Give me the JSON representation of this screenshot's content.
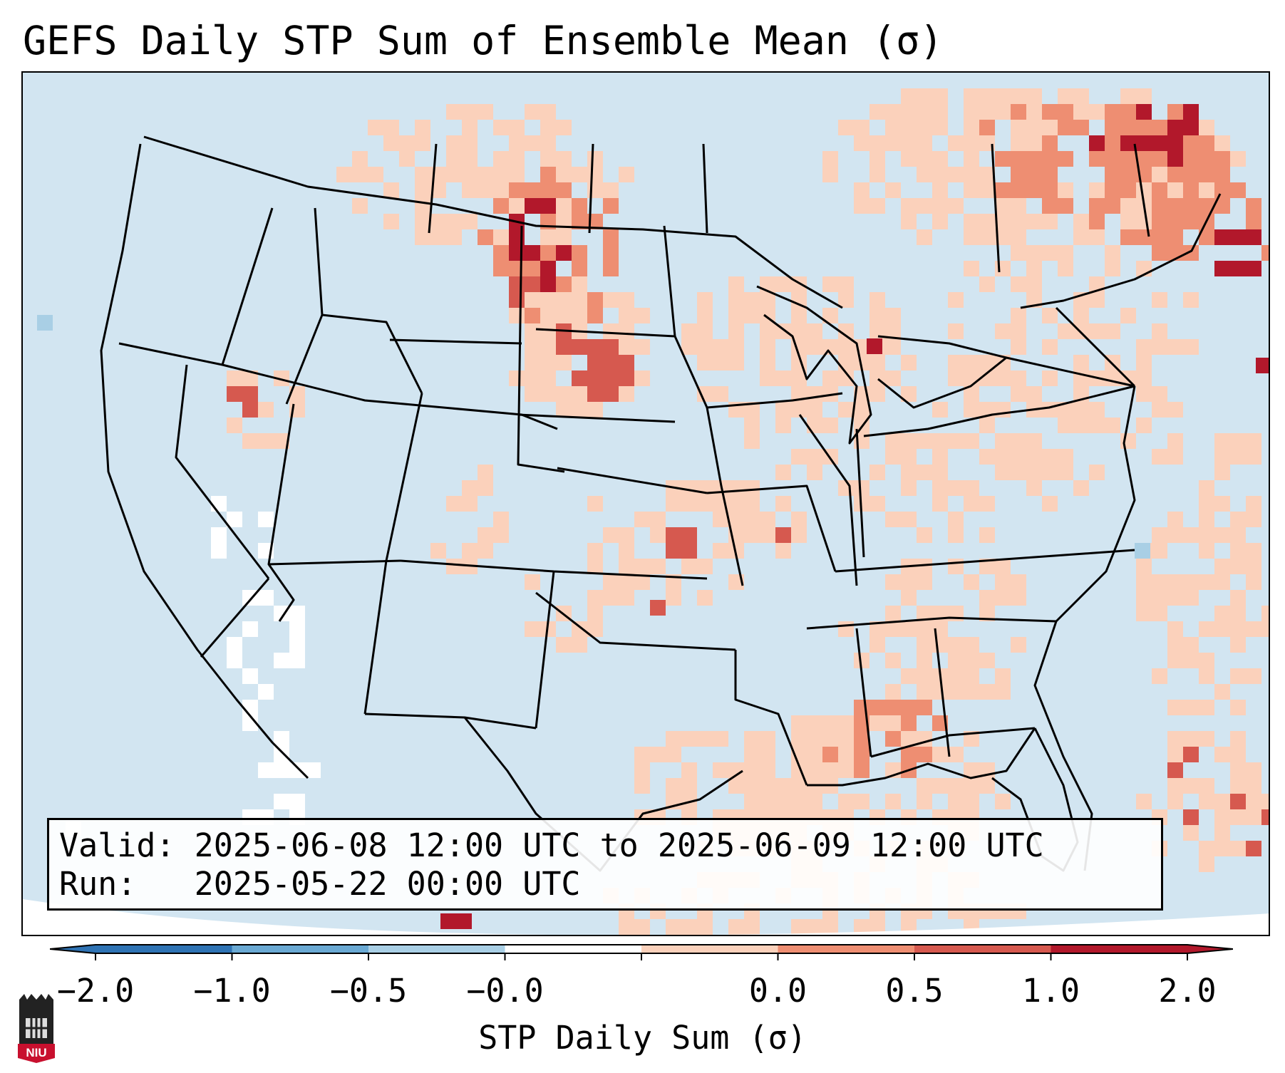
{
  "title": "GEFS Daily STP Sum of Ensemble Mean (σ)",
  "info": {
    "valid_label": "Valid:",
    "valid_range": "2025-06-08 12:00 UTC to 2025-06-09 12:00 UTC",
    "run_label": "Run:",
    "run_time": "2025-05-22 00:00 UTC"
  },
  "colorbar": {
    "label": "STP Daily Sum (σ)",
    "ticks": [
      "−2.0",
      "−1.0",
      "−0.5",
      "−0.0",
      "0.0",
      "0.5",
      "1.0",
      "2.0"
    ],
    "colors": [
      "#2f73b4",
      "#6aa9d3",
      "#a9cfe5",
      "#ffffff",
      "#fbd1bb",
      "#ee8e72",
      "#d6594f",
      "#b2182b"
    ]
  },
  "logo": {
    "text": "NIU"
  }
}
